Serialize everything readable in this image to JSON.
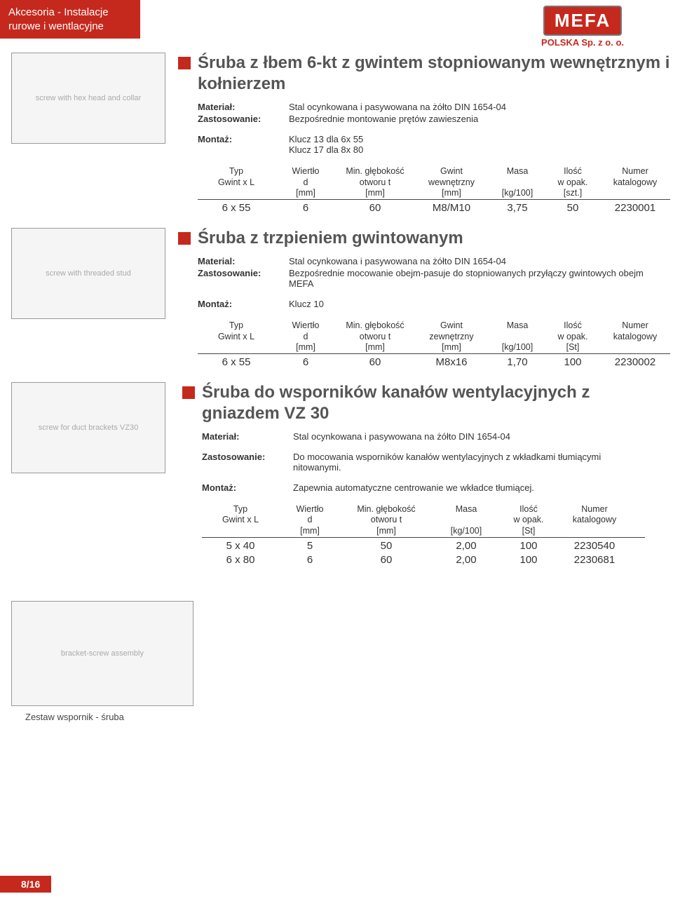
{
  "header": {
    "tab_line1": "Akcesoria - Instalacje",
    "tab_line2": "rurowe i wentlacyjne"
  },
  "logo": {
    "brand": "MEFA",
    "sub": "POLSKA Sp. z o. o."
  },
  "section1": {
    "title": "Śruba z łbem 6-kt z gwintem stopniowanym wewnętrznym i kołnierzem",
    "material_label": "Materiał:",
    "material_val": "Stal ocynkowana i pasywowana na żółto DIN 1654-04",
    "zastos_label": "Zastosowanie:",
    "zastos_val": "Bezpośrednie montowanie prętów zawieszenia",
    "montaz_label": "Montaż:",
    "montaz_val1": "Klucz 13 dla 6x 55",
    "montaz_val2": "Klucz 17 dla 8x 80",
    "img_label": "screw with hex head and collar",
    "table": {
      "cols": "110px 80px 110px 100px 80px 70px 100px",
      "headers": [
        "Typ\nGwint x L",
        "Wiertło\nd\n[mm]",
        "Min. głębokość\notworu t\n[mm]",
        "Gwint\nwewnętrzny\n[mm]",
        "Masa\n\n[kg/100]",
        "Ilość\nw opak.\n[szt.]",
        "Numer\nkatalogowy"
      ],
      "rows": [
        [
          "6 x 55",
          "6",
          "60",
          "M8/M10",
          "3,75",
          "50",
          "2230001"
        ]
      ]
    }
  },
  "section2": {
    "title": "Śruba z trzpieniem gwintowanym",
    "material_label": "Material:",
    "material_val": "Stal ocynkowana i pasywowana na żółto DIN 1654-04",
    "zastos_label": "Zastosowanie:",
    "zastos_val": "Bezpośrednie mocowanie obejm-pasuje do stopniowanych przyłączy gwintowych obejm MEFA",
    "montaz_label": "Montaż:",
    "montaz_val": "Klucz 10",
    "img_label": "screw with threaded stud",
    "table": {
      "cols": "110px 80px 110px 100px 80px 70px 100px",
      "headers": [
        "Typ\nGwint x L",
        "Wiertło\nd\n[mm]",
        "Min. głębokość\notworu t\n[mm]",
        "Gwint\nzewnętrzny\n[mm]",
        "Masa\n\n[kg/100]",
        "Ilość\nw opak.\n[St]",
        "Numer\nkatalogowy"
      ],
      "rows": [
        [
          "6 x 55",
          "6",
          "60",
          "M8x16",
          "1,70",
          "100",
          "2230002"
        ]
      ]
    }
  },
  "section3": {
    "title": "Śruba do wsporników kanałów wentylacyjnych z gniazdem VZ 30",
    "material_label": "Materiał:",
    "material_val": "Stal ocynkowana i pasywowana na żółto DIN 1654-04",
    "zastos_label": "Zastosowanie:",
    "zastos_val": "Do mocowania wsporników kanałów wentylacyjnych z wkładkami tłumiącymi nitowanymi.",
    "montaz_label": "Montaż:",
    "montaz_val": "Zapewnia automatyczne centrowanie we wkładce tłumiącej.",
    "img_label": "screw for duct brackets VZ30",
    "table": {
      "cols": "110px 80px 130px 90px 80px 100px",
      "headers": [
        "Typ\nGwint x L",
        "Wiertło\nd\n[mm]",
        "Min. głębokość\notworu t\n[mm]",
        "Masa\n\n[kg/100]",
        "Ilość\nw opak.\n[St]",
        "Numer\nkatalogowy"
      ],
      "rows": [
        [
          "5 x 40",
          "5",
          "50",
          "2,00",
          "100",
          "2230540"
        ],
        [
          "6 x 80",
          "6",
          "60",
          "2,00",
          "100",
          "2230681"
        ]
      ]
    }
  },
  "bottom": {
    "img_label": "bracket-screw assembly",
    "caption": "Zestaw wspornik - śruba"
  },
  "page_number": "8/16"
}
